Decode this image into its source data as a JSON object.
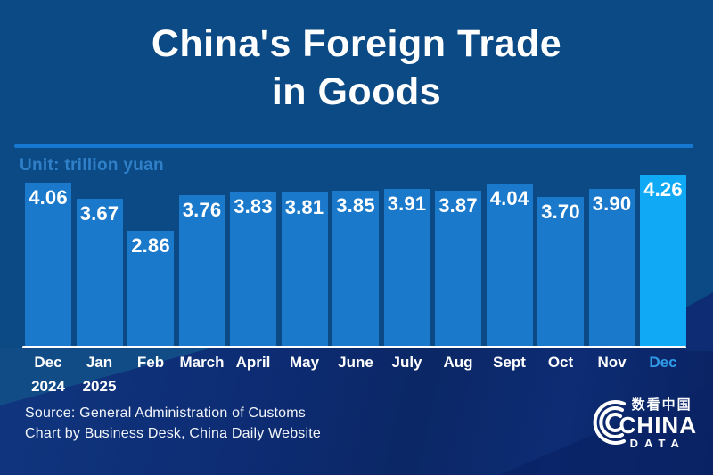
{
  "title": {
    "line1": "China's Foreign Trade",
    "line2": "in Goods"
  },
  "unit_label": "Unit: trillion yuan",
  "chart_data": {
    "type": "bar",
    "title": "China's Foreign Trade in Goods",
    "unit": "trillion yuan",
    "categories": [
      "Dec",
      "Jan",
      "Feb",
      "March",
      "April",
      "May",
      "June",
      "July",
      "Aug",
      "Sept",
      "Oct",
      "Nov",
      "Dec"
    ],
    "sub_labels": [
      "2024",
      "2025",
      "",
      "",
      "",
      "",
      "",
      "",
      "",
      "",
      "",
      "",
      ""
    ],
    "values": [
      4.06,
      3.67,
      2.86,
      3.76,
      3.83,
      3.81,
      3.85,
      3.91,
      3.87,
      4.04,
      3.7,
      3.9,
      4.26
    ],
    "value_labels": [
      "4.06",
      "3.67",
      "2.86",
      "3.76",
      "3.83",
      "3.81",
      "3.85",
      "3.91",
      "3.87",
      "4.04",
      "3.70",
      "3.90",
      "4.26"
    ],
    "ylim": [
      0,
      4.26
    ],
    "highlight_index": 12,
    "grid": false,
    "legend": false
  },
  "colors": {
    "bar": "#1A79CB",
    "highlight_bar": "#0FA9F5",
    "highlight_label": "#2F9BE8",
    "divider": "#1778D2",
    "unit_text": "#2F80C9",
    "background_top": "#0B4A84",
    "background_bottom": "#0D2C74",
    "text": "#FFFFFF"
  },
  "source": {
    "line1": "Source: General Administration of Customs",
    "line2": "Chart by Business Desk, China Daily Website"
  },
  "logo": {
    "chinese": "数看中国",
    "name": "CHINA",
    "sub": "DATA"
  }
}
